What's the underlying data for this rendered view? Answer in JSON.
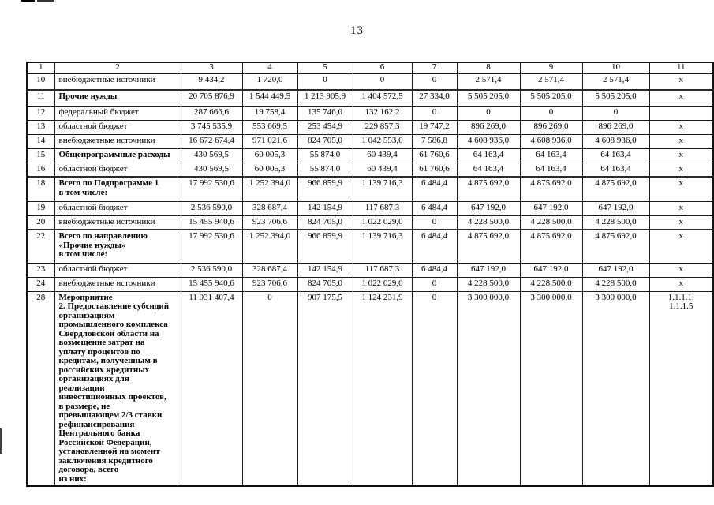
{
  "page": {
    "number": "13"
  },
  "table": {
    "column_headers": [
      "1",
      "2",
      "3",
      "4",
      "5",
      "6",
      "7",
      "8",
      "9",
      "10",
      "11"
    ],
    "rows": [
      {
        "num": "10",
        "label": "внебюджетные источники",
        "bold": false,
        "values": [
          "9 434,2",
          "1 720,0",
          "0",
          "0",
          "0",
          "2 571,4",
          "2 571,4",
          "2 571,4",
          "x"
        ]
      },
      {
        "num": "11",
        "label": "Прочие нужды",
        "bold": true,
        "values": [
          "20 705 876,9",
          "1 544 449,5",
          "1 213 905,9",
          "1 404 572,5",
          "27 334,0",
          "5 505 205,0",
          "5 505 205,0",
          "5 505 205,0",
          "x"
        ]
      },
      {
        "num": "12",
        "label": "федеральный бюджет",
        "bold": false,
        "values": [
          "287 666,6",
          "19 758,4",
          "135 746,0",
          "132 162,2",
          "0",
          "0",
          "0",
          "0",
          ""
        ]
      },
      {
        "num": "13",
        "label": "областной бюджет",
        "bold": false,
        "values": [
          "3 745 535,9",
          "553 669,5",
          "253 454,9",
          "229 857,3",
          "19 747,2",
          "896 269,0",
          "896 269,0",
          "896 269,0",
          "x"
        ]
      },
      {
        "num": "14",
        "label": "внебюджетные источники",
        "bold": false,
        "values": [
          "16 672 674,4",
          "971 021,6",
          "824 705,0",
          "1 042 553,0",
          "7 586,8",
          "4 608 936,0",
          "4 608 936,0",
          "4 608 936,0",
          "x"
        ]
      },
      {
        "num": "15",
        "label": "Общепрограммные расходы",
        "bold": true,
        "values": [
          "430 569,5",
          "60 005,3",
          "55 874,0",
          "60 439,4",
          "61 760,6",
          "64 163,4",
          "64 163,4",
          "64 163,4",
          "x"
        ]
      },
      {
        "num": "16",
        "label": "областной бюджет",
        "bold": false,
        "values": [
          "430 569,5",
          "60 005,3",
          "55 874,0",
          "60 439,4",
          "61 760,6",
          "64 163,4",
          "64 163,4",
          "64 163,4",
          "x"
        ]
      },
      {
        "num": "18",
        "label": "Всего по Подпрограмме 1\nв том числе:",
        "bold": true,
        "values": [
          "17 992 530,6",
          "1 252 394,0",
          "966 859,9",
          "1 139 716,3",
          "6 484,4",
          "4 875 692,0",
          "4 875 692,0",
          "4 875 692,0",
          "x"
        ]
      },
      {
        "num": "19",
        "label": "областной бюджет",
        "bold": false,
        "values": [
          "2 536 590,0",
          "328 687,4",
          "142 154,9",
          "117 687,3",
          "6 484,4",
          "647 192,0",
          "647 192,0",
          "647 192,0",
          "x"
        ]
      },
      {
        "num": "20",
        "label": "внебюджетные источники",
        "bold": false,
        "values": [
          "15 455 940,6",
          "923 706,6",
          "824 705,0",
          "1 022 029,0",
          "0",
          "4 228 500,0",
          "4 228 500,0",
          "4 228 500,0",
          "x"
        ]
      },
      {
        "num": "22",
        "label": "Всего по направлению\n«Прочие нужды»\nв том числе:",
        "bold": true,
        "values": [
          "17 992 530,6",
          "1 252 394,0",
          "966 859,9",
          "1 139 716,3",
          "6 484,4",
          "4 875 692,0",
          "4 875 692,0",
          "4 875 692,0",
          "x"
        ]
      },
      {
        "num": "23",
        "label": "областной бюджет",
        "bold": false,
        "values": [
          "2 536 590,0",
          "328 687,4",
          "142 154,9",
          "117 687,3",
          "6 484,4",
          "647 192,0",
          "647 192,0",
          "647 192,0",
          "x"
        ]
      },
      {
        "num": "24",
        "label": "внебюджетные источники",
        "bold": false,
        "values": [
          "15 455 940,6",
          "923 706,6",
          "824 705,0",
          "1 022 029,0",
          "0",
          "4 228 500,0",
          "4 228 500,0",
          "4 228 500,0",
          "x"
        ]
      },
      {
        "num": "28",
        "label": "Мероприятие\n2. Предоставление субсидий\nорганизациям\nпромышленного комплекса\nСвердловской области на\nвозмещение затрат на\nуплату процентов по\nкредитам, полученным в\nроссийских кредитных\nорганизациях для\nреализации\nинвестиционных проектов,\nв размере, не\nпревышающем 2/3 ставки\nрефинансирования\nЦентрального банка\nРоссийской Федерации,\nустановленной на момент\nзаключения кредитного\nдоговора, всего\nиз них:",
        "bold": true,
        "values": [
          "11 931 407,4",
          "0",
          "907 175,5",
          "1 124 231,9",
          "0",
          "3 300 000,0",
          "3 300 000,0",
          "3 300 000,0",
          "1.1.1.1,\n1.1.1.5"
        ]
      }
    ]
  }
}
